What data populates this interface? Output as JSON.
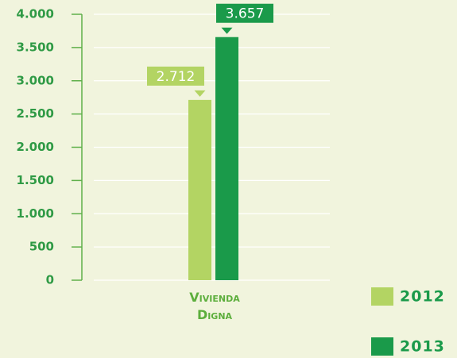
{
  "chart_data": {
    "type": "bar",
    "categories": [
      "Vivienda Digna"
    ],
    "series": [
      {
        "name": "2012",
        "color": "#b3d463",
        "values": [
          2712
        ],
        "value_labels": [
          "2.712"
        ]
      },
      {
        "name": "2013",
        "color": "#1a9a4a",
        "values": [
          3657
        ],
        "value_labels": [
          "3.657"
        ]
      }
    ],
    "ylim": [
      0,
      4000
    ],
    "yticks": [
      0,
      500,
      {
        "value": 1000,
        "label": "1.000"
      },
      {
        "value": 1500,
        "label": "1.500"
      },
      {
        "value": 2000,
        "label": "2.000"
      },
      {
        "value": 2500,
        "label": "2.500"
      },
      {
        "value": 3000,
        "label": "3.000"
      },
      {
        "value": 3500,
        "label": "3.500"
      },
      {
        "value": 4000,
        "label": "4.000"
      }
    ],
    "grid": true,
    "legend": "lower right"
  }
}
